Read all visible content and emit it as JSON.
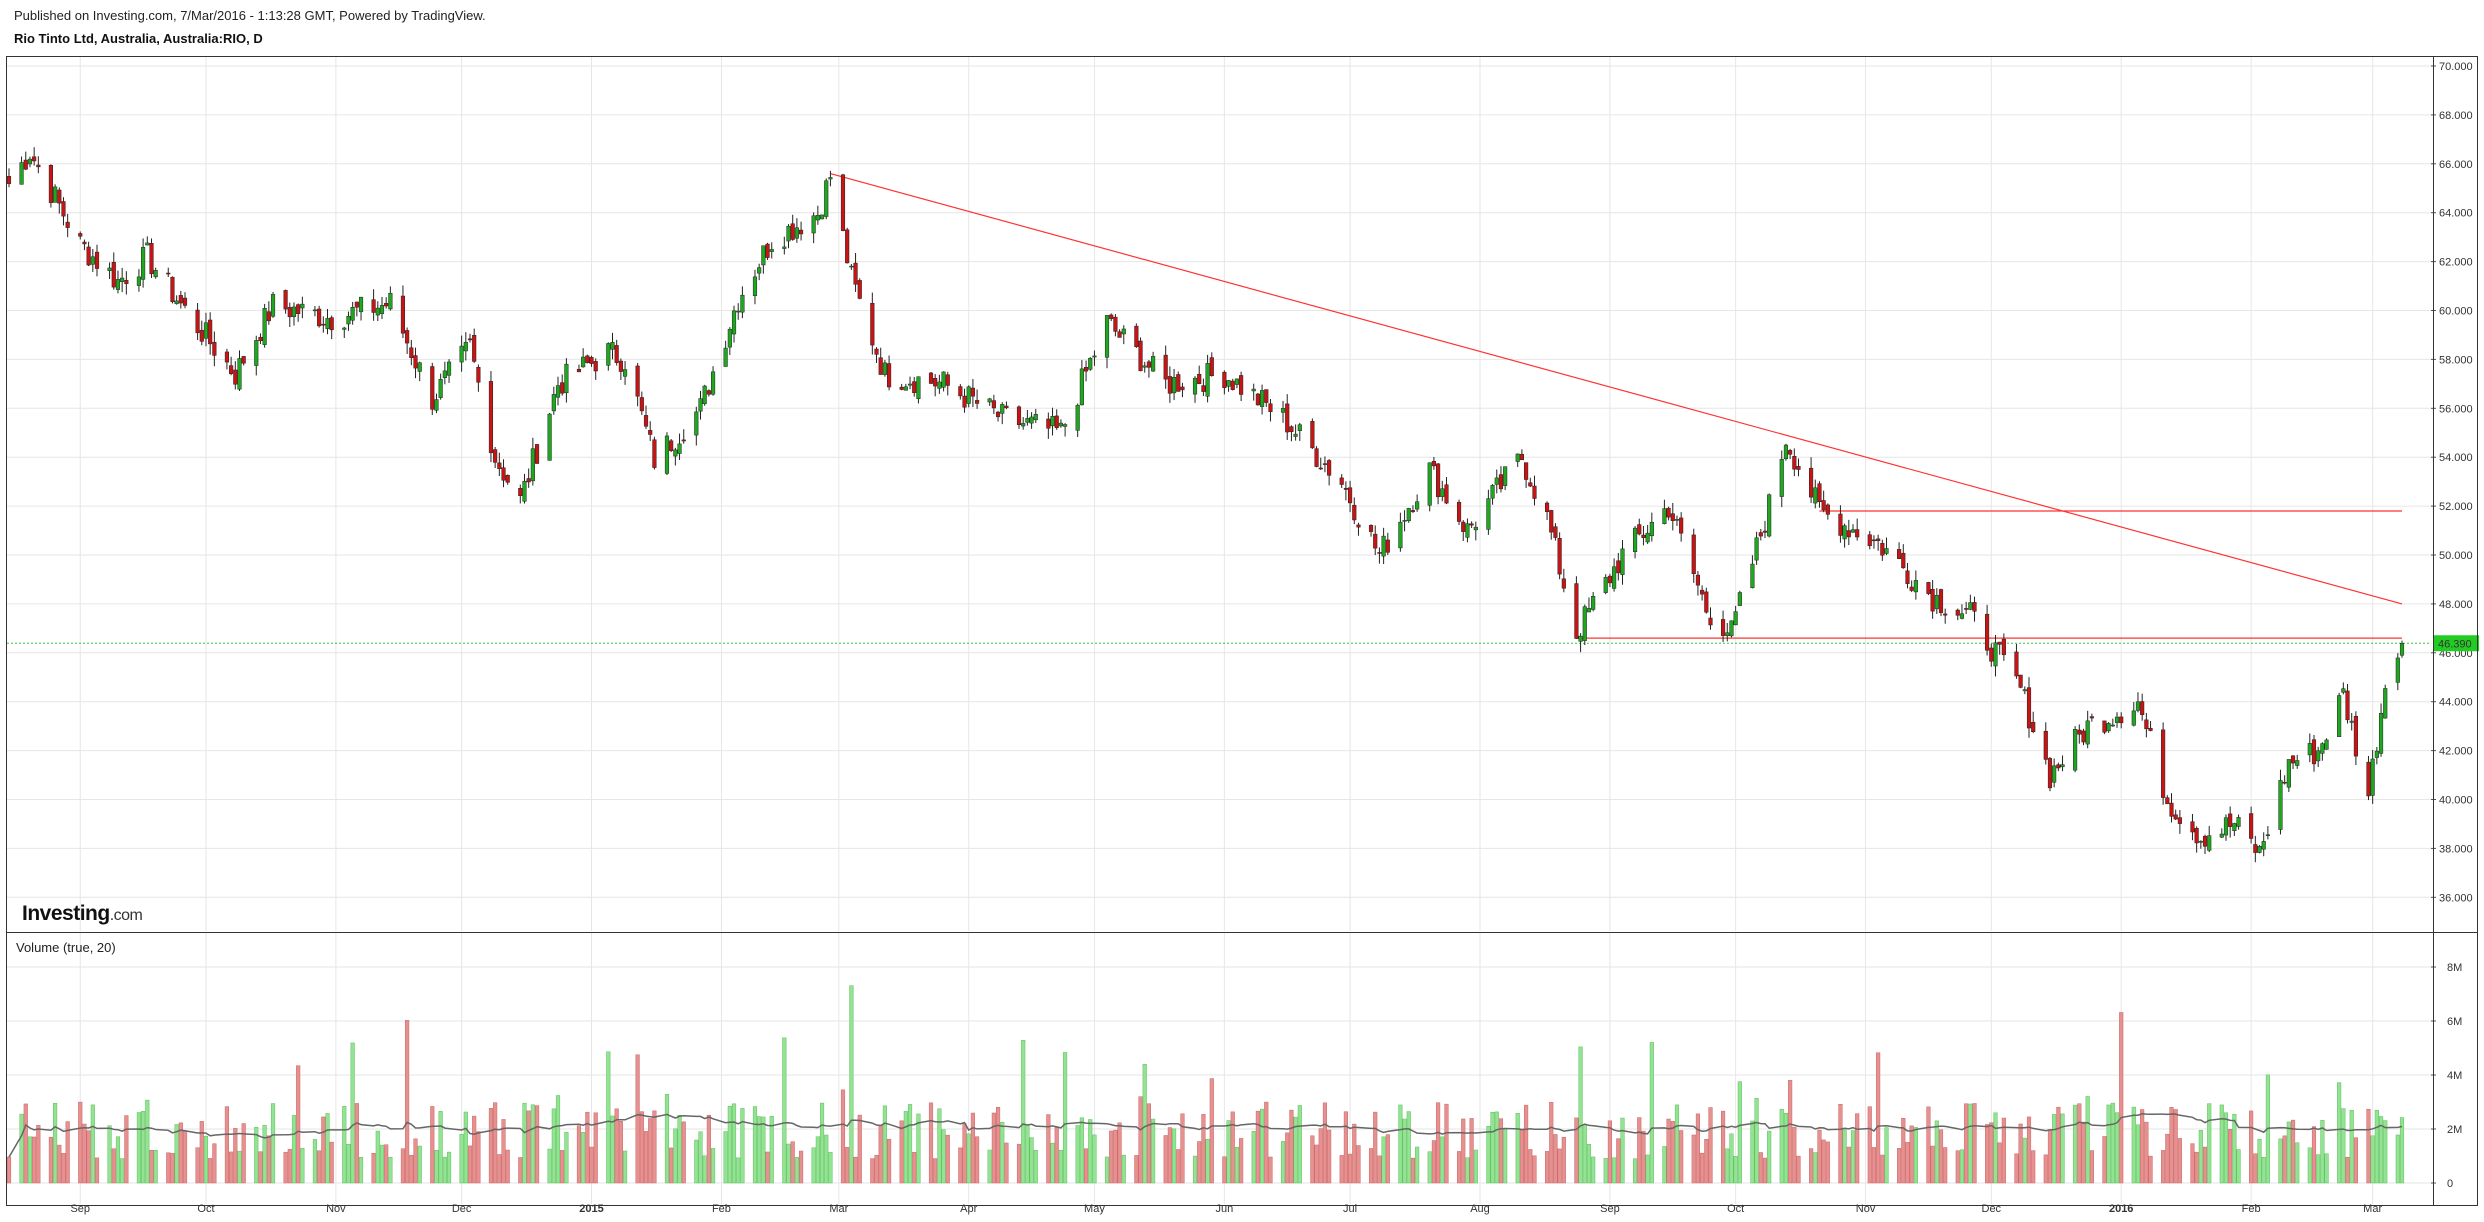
{
  "header": {
    "published": "Published on Investing.com, 7/Mar/2016 - 1:13:28 GMT, Powered by TradingView.",
    "symbol": "Rio Tinto Ltd, Australia, Australia:RIO, D"
  },
  "watermark": {
    "brand": "Investing",
    "suffix": ".com"
  },
  "volume_panel": {
    "label": "Volume (true, 20)"
  },
  "colors": {
    "up": "#1fa81f",
    "down": "#c81414",
    "vol_up": "#92e392",
    "vol_down": "#e79090",
    "ma": "#666666",
    "trend": "#ff3333",
    "price_line": "#33cc33",
    "grid": "#e6e6e6"
  },
  "chart_data": [
    {
      "type": "candlestick",
      "symbol": "Rio Tinto Ltd, Australia, Australia:RIO, D",
      "interval": "D",
      "x_ticks": [
        {
          "label": "Sep",
          "x": "2014-09-01"
        },
        {
          "label": "Oct",
          "x": "2014-10-01"
        },
        {
          "label": "Nov",
          "x": "2014-11-01"
        },
        {
          "label": "Dec",
          "x": "2014-12-01"
        },
        {
          "label": "2015",
          "x": "2015-01-01",
          "bold": true
        },
        {
          "label": "Feb",
          "x": "2015-02-01"
        },
        {
          "label": "Mar",
          "x": "2015-03-01"
        },
        {
          "label": "Apr",
          "x": "2015-04-01"
        },
        {
          "label": "May",
          "x": "2015-05-01"
        },
        {
          "label": "Jun",
          "x": "2015-06-01"
        },
        {
          "label": "Jul",
          "x": "2015-07-01"
        },
        {
          "label": "Aug",
          "x": "2015-08-01"
        },
        {
          "label": "Sep",
          "x": "2015-09-01"
        },
        {
          "label": "Oct",
          "x": "2015-10-01"
        },
        {
          "label": "Nov",
          "x": "2015-11-01"
        },
        {
          "label": "Dec",
          "x": "2015-12-01"
        },
        {
          "label": "2016",
          "x": "2016-01-01",
          "bold": true
        },
        {
          "label": "Feb",
          "x": "2016-02-01"
        },
        {
          "label": "Mar",
          "x": "2016-03-01"
        }
      ],
      "y_ticks": [
        "70.000",
        "68.000",
        "66.000",
        "64.000",
        "62.000",
        "60.000",
        "58.000",
        "56.000",
        "54.000",
        "52.000",
        "50.000",
        "48.000",
        "46.000",
        "44.000",
        "42.000",
        "40.000",
        "38.000",
        "36.000"
      ],
      "ylim": [
        35,
        70.2
      ],
      "x_range": [
        "2014-08-15",
        "2016-03-08"
      ],
      "last_price": 46.39,
      "last_price_label": "46.390",
      "trendlines": [
        {
          "type": "resistance",
          "from": {
            "x": "2015-02-27",
            "y": 65.6
          },
          "to": {
            "x": "2016-03-08",
            "y": 48.0
          }
        },
        {
          "type": "horizontal",
          "from": {
            "x": "2015-10-21",
            "y": 51.8
          },
          "to": {
            "x": "2016-03-08",
            "y": 51.8
          }
        },
        {
          "type": "horizontal",
          "from": {
            "x": "2015-08-24",
            "y": 46.6
          },
          "to": {
            "x": "2016-03-08",
            "y": 46.6
          }
        }
      ],
      "key_points": [
        {
          "x": "2014-08-15",
          "y": 65.2
        },
        {
          "x": "2014-08-20",
          "y": 66.5
        },
        {
          "x": "2014-09-01",
          "y": 62.7
        },
        {
          "x": "2014-09-10",
          "y": 61.2
        },
        {
          "x": "2014-09-17",
          "y": 62.2
        },
        {
          "x": "2014-09-26",
          "y": 60.0
        },
        {
          "x": "2014-10-08",
          "y": 57.4
        },
        {
          "x": "2014-10-17",
          "y": 60.2
        },
        {
          "x": "2014-10-31",
          "y": 59.7
        },
        {
          "x": "2014-11-14",
          "y": 60.3
        },
        {
          "x": "2014-11-24",
          "y": 56.4
        },
        {
          "x": "2014-12-03",
          "y": 58.5
        },
        {
          "x": "2014-12-09",
          "y": 54.0
        },
        {
          "x": "2014-12-15",
          "y": 52.2
        },
        {
          "x": "2014-12-24",
          "y": 57.0
        },
        {
          "x": "2015-01-05",
          "y": 58.3
        },
        {
          "x": "2015-01-09",
          "y": 58.0
        },
        {
          "x": "2015-01-16",
          "y": 53.9
        },
        {
          "x": "2015-01-27",
          "y": 56.0
        },
        {
          "x": "2015-02-05",
          "y": 60.5
        },
        {
          "x": "2015-02-13",
          "y": 62.9
        },
        {
          "x": "2015-02-24",
          "y": 64.0
        },
        {
          "x": "2015-02-27",
          "y": 65.5
        },
        {
          "x": "2015-03-04",
          "y": 61.3
        },
        {
          "x": "2015-03-12",
          "y": 57.4
        },
        {
          "x": "2015-03-26",
          "y": 57.0
        },
        {
          "x": "2015-04-09",
          "y": 55.6
        },
        {
          "x": "2015-04-23",
          "y": 55.0
        },
        {
          "x": "2015-05-04",
          "y": 59.5
        },
        {
          "x": "2015-05-18",
          "y": 57.0
        },
        {
          "x": "2015-06-01",
          "y": 57.4
        },
        {
          "x": "2015-06-15",
          "y": 55.6
        },
        {
          "x": "2015-06-29",
          "y": 53.0
        },
        {
          "x": "2015-07-08",
          "y": 50.0
        },
        {
          "x": "2015-07-20",
          "y": 53.5
        },
        {
          "x": "2015-07-29",
          "y": 51.0
        },
        {
          "x": "2015-08-11",
          "y": 54.0
        },
        {
          "x": "2015-08-17",
          "y": 51.5
        },
        {
          "x": "2015-08-24",
          "y": 46.8
        },
        {
          "x": "2015-09-04",
          "y": 50.0
        },
        {
          "x": "2015-09-15",
          "y": 52.0
        },
        {
          "x": "2015-09-24",
          "y": 47.8
        },
        {
          "x": "2015-09-30",
          "y": 46.8
        },
        {
          "x": "2015-10-09",
          "y": 52.0
        },
        {
          "x": "2015-10-13",
          "y": 54.8
        },
        {
          "x": "2015-10-21",
          "y": 51.8
        },
        {
          "x": "2015-11-04",
          "y": 50.5
        },
        {
          "x": "2015-11-17",
          "y": 48.3
        },
        {
          "x": "2015-11-26",
          "y": 47.5
        },
        {
          "x": "2015-12-08",
          "y": 44.5
        },
        {
          "x": "2015-12-15",
          "y": 41.0
        },
        {
          "x": "2015-12-24",
          "y": 43.0
        },
        {
          "x": "2016-01-05",
          "y": 44.0
        },
        {
          "x": "2016-01-12",
          "y": 40.0
        },
        {
          "x": "2016-01-20",
          "y": 38.5
        },
        {
          "x": "2016-01-28",
          "y": 39.0
        },
        {
          "x": "2016-02-03",
          "y": 37.8
        },
        {
          "x": "2016-02-10",
          "y": 41.5
        },
        {
          "x": "2016-02-17",
          "y": 42.0
        },
        {
          "x": "2016-02-23",
          "y": 44.3
        },
        {
          "x": "2016-02-29",
          "y": 40.2
        },
        {
          "x": "2016-03-04",
          "y": 44.8
        },
        {
          "x": "2016-03-07",
          "y": 46.39
        }
      ]
    },
    {
      "type": "bar",
      "title": "Volume (true, 20)",
      "y_ticks": [
        "8M",
        "6M",
        "4M",
        "2M",
        "0"
      ],
      "ylim": [
        0,
        8500000
      ],
      "moving_average_period": 20,
      "moving_average_level": 2300000
    }
  ]
}
